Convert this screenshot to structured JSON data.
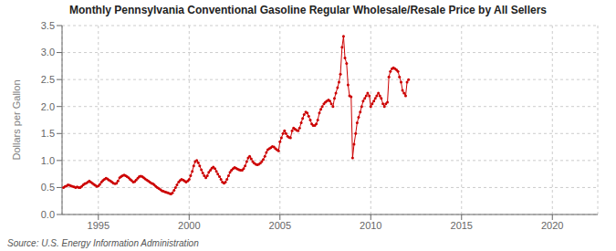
{
  "chart_data": {
    "type": "line",
    "title": "Monthly Pennsylvania Conventional Gasoline Regular Wholesale/Resale Price by All Sellers",
    "y_label": "Dollars per Gallon",
    "annotations": [
      "Source: U.S. Energy Information Administration"
    ],
    "color": "#cc0000",
    "marker": "circle",
    "line_style": "solid",
    "grid": true,
    "xlim": [
      1993.0,
      2022.5
    ],
    "ylim": [
      0.0,
      3.5
    ],
    "xticks": [
      1995,
      2000,
      2005,
      2010,
      2015,
      2020
    ],
    "yticks": [
      {
        "value": 0.0,
        "label": "0.0"
      },
      0.5,
      {
        "value": 1.0,
        "label": "1.0"
      },
      1.5,
      {
        "value": 2.0,
        "label": "2.0"
      },
      2.5,
      {
        "value": 3.0,
        "label": "3.0"
      },
      3.5
    ],
    "x": [
      1993.08,
      1993.17,
      1993.25,
      1993.33,
      1993.42,
      1993.5,
      1993.58,
      1993.67,
      1993.75,
      1993.83,
      1993.92,
      1994.0,
      1994.08,
      1994.17,
      1994.25,
      1994.33,
      1994.42,
      1994.5,
      1994.58,
      1994.67,
      1994.75,
      1994.83,
      1994.92,
      1995.0,
      1995.08,
      1995.17,
      1995.25,
      1995.33,
      1995.42,
      1995.5,
      1995.58,
      1995.67,
      1995.75,
      1995.83,
      1995.92,
      1996.0,
      1996.08,
      1996.17,
      1996.25,
      1996.33,
      1996.42,
      1996.5,
      1996.58,
      1996.67,
      1996.75,
      1996.83,
      1996.92,
      1997.0,
      1997.08,
      1997.17,
      1997.25,
      1997.33,
      1997.42,
      1997.5,
      1997.58,
      1997.67,
      1997.75,
      1997.83,
      1997.92,
      1998.0,
      1998.08,
      1998.17,
      1998.25,
      1998.33,
      1998.42,
      1998.5,
      1998.58,
      1998.67,
      1998.75,
      1998.83,
      1998.92,
      1999.0,
      1999.08,
      1999.17,
      1999.25,
      1999.33,
      1999.42,
      1999.5,
      1999.58,
      1999.67,
      1999.75,
      1999.83,
      1999.92,
      2000.0,
      2000.08,
      2000.17,
      2000.25,
      2000.33,
      2000.42,
      2000.5,
      2000.58,
      2000.67,
      2000.75,
      2000.83,
      2000.92,
      2001.0,
      2001.08,
      2001.17,
      2001.25,
      2001.33,
      2001.42,
      2001.5,
      2001.58,
      2001.67,
      2001.75,
      2001.83,
      2001.92,
      2002.0,
      2002.08,
      2002.17,
      2002.25,
      2002.33,
      2002.42,
      2002.5,
      2002.58,
      2002.67,
      2002.75,
      2002.83,
      2002.92,
      2003.0,
      2003.08,
      2003.17,
      2003.25,
      2003.33,
      2003.42,
      2003.5,
      2003.58,
      2003.67,
      2003.75,
      2003.83,
      2003.92,
      2004.0,
      2004.08,
      2004.17,
      2004.25,
      2004.33,
      2004.42,
      2004.5,
      2004.58,
      2004.67,
      2004.75,
      2004.83,
      2004.92,
      2005.0,
      2005.08,
      2005.17,
      2005.25,
      2005.33,
      2005.42,
      2005.5,
      2005.58,
      2005.67,
      2005.75,
      2005.83,
      2005.92,
      2006.0,
      2006.08,
      2006.17,
      2006.25,
      2006.33,
      2006.42,
      2006.5,
      2006.58,
      2006.67,
      2006.75,
      2006.83,
      2006.92,
      2007.0,
      2007.08,
      2007.17,
      2007.25,
      2007.33,
      2007.42,
      2007.5,
      2007.58,
      2007.67,
      2007.75,
      2007.83,
      2007.92,
      2008.0,
      2008.08,
      2008.17,
      2008.25,
      2008.33,
      2008.42,
      2008.5,
      2008.58,
      2008.67,
      2008.75,
      2008.83,
      2008.92,
      2009.0,
      2009.08,
      2009.17,
      2009.25,
      2009.33,
      2009.42,
      2009.5,
      2009.58,
      2009.67,
      2009.75,
      2009.83,
      2009.92,
      2010.0,
      2010.08,
      2010.17,
      2010.25,
      2010.33,
      2010.42,
      2010.5,
      2010.58,
      2010.67,
      2010.75,
      2010.83,
      2010.92,
      2011.0,
      2011.08,
      2011.17,
      2011.25,
      2011.33,
      2011.42,
      2011.5,
      2011.58,
      2011.67,
      2011.75,
      2011.83,
      2011.92,
      2012.0,
      2012.08
    ],
    "values": [
      0.5,
      0.52,
      0.53,
      0.55,
      0.54,
      0.53,
      0.52,
      0.51,
      0.5,
      0.51,
      0.5,
      0.5,
      0.52,
      0.55,
      0.57,
      0.58,
      0.6,
      0.62,
      0.6,
      0.58,
      0.56,
      0.54,
      0.52,
      0.53,
      0.56,
      0.6,
      0.63,
      0.65,
      0.67,
      0.66,
      0.64,
      0.62,
      0.6,
      0.58,
      0.57,
      0.58,
      0.62,
      0.68,
      0.7,
      0.72,
      0.73,
      0.72,
      0.7,
      0.68,
      0.65,
      0.63,
      0.6,
      0.61,
      0.64,
      0.67,
      0.7,
      0.71,
      0.7,
      0.68,
      0.66,
      0.64,
      0.62,
      0.6,
      0.58,
      0.57,
      0.55,
      0.52,
      0.5,
      0.48,
      0.46,
      0.44,
      0.43,
      0.42,
      0.41,
      0.4,
      0.39,
      0.38,
      0.4,
      0.45,
      0.5,
      0.55,
      0.6,
      0.63,
      0.65,
      0.64,
      0.62,
      0.6,
      0.62,
      0.65,
      0.72,
      0.8,
      0.9,
      0.98,
      1.0,
      0.96,
      0.9,
      0.83,
      0.77,
      0.72,
      0.68,
      0.72,
      0.78,
      0.82,
      0.86,
      0.88,
      0.85,
      0.8,
      0.75,
      0.7,
      0.65,
      0.6,
      0.58,
      0.6,
      0.65,
      0.72,
      0.78,
      0.82,
      0.85,
      0.87,
      0.86,
      0.84,
      0.83,
      0.82,
      0.82,
      0.85,
      0.9,
      0.98,
      1.05,
      1.08,
      1.03,
      0.98,
      0.95,
      0.93,
      0.92,
      0.93,
      0.95,
      0.98,
      1.02,
      1.08,
      1.15,
      1.2,
      1.22,
      1.24,
      1.26,
      1.25,
      1.22,
      1.2,
      1.18,
      1.35,
      1.42,
      1.5,
      1.55,
      1.5,
      1.45,
      1.43,
      1.42,
      1.55,
      1.6,
      1.58,
      1.56,
      1.55,
      1.6,
      1.7,
      1.78,
      1.85,
      1.9,
      1.88,
      1.82,
      1.75,
      1.68,
      1.65,
      1.65,
      1.68,
      1.75,
      1.88,
      1.95,
      2.0,
      2.05,
      2.08,
      2.1,
      2.12,
      2.1,
      2.05,
      2.0,
      2.15,
      2.25,
      2.35,
      2.45,
      2.6,
      3.1,
      3.3,
      2.9,
      2.8,
      2.4,
      2.2,
      2.18,
      1.05,
      1.3,
      1.5,
      1.7,
      1.8,
      1.9,
      2.0,
      2.1,
      2.15,
      2.2,
      2.25,
      2.2,
      2.0,
      2.05,
      2.1,
      2.15,
      2.2,
      2.25,
      2.2,
      2.15,
      2.05,
      2.0,
      2.05,
      2.08,
      2.55,
      2.65,
      2.7,
      2.72,
      2.7,
      2.68,
      2.65,
      2.55,
      2.45,
      2.3,
      2.25,
      2.2,
      2.45,
      2.5
    ]
  }
}
